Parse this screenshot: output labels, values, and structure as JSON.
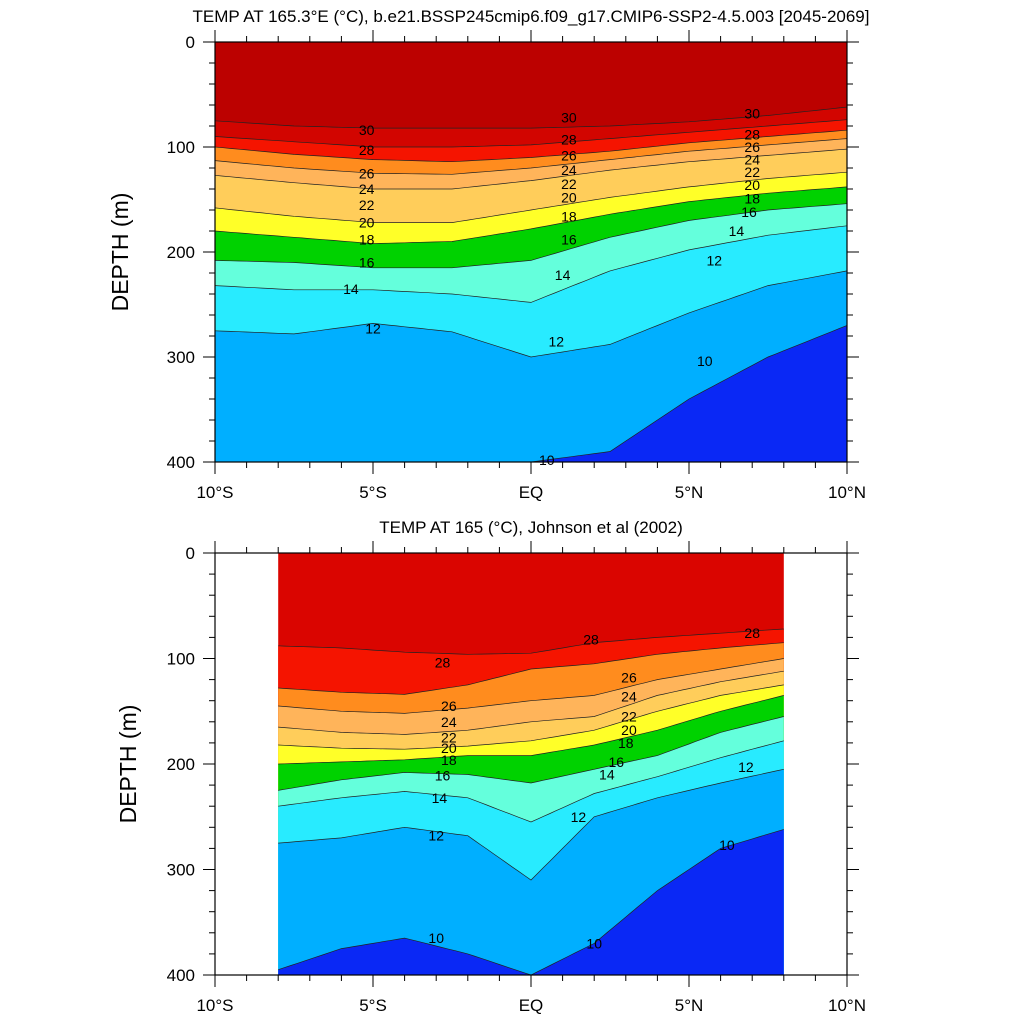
{
  "chart_data": [
    {
      "type": "contour",
      "title": "TEMP AT 165.3°E (°C), b.e21.BSSP245cmip6.f09_g17.CMIP6-SSP2-4.5.003 [2045-2069]",
      "ylabel": "DEPTH (m)",
      "xlabel": "",
      "xlim": [
        -10,
        10
      ],
      "ylim": [
        0,
        400
      ],
      "y_inverted": true,
      "x_ticks": [
        {
          "value": -10,
          "label": "10°S"
        },
        {
          "value": -5,
          "label": "5°S"
        },
        {
          "value": 0,
          "label": "EQ"
        },
        {
          "value": 5,
          "label": "5°N"
        },
        {
          "value": 10,
          "label": "10°N"
        }
      ],
      "y_ticks": [
        {
          "value": 0,
          "label": "0"
        },
        {
          "value": 100,
          "label": "100"
        },
        {
          "value": 200,
          "label": "200"
        },
        {
          "value": 300,
          "label": "300"
        },
        {
          "value": 400,
          "label": "400"
        }
      ],
      "data_extent": [
        -10,
        10
      ],
      "isotherm_depths": {
        "x": [
          -10,
          -7.5,
          -5,
          -2.5,
          0,
          2.5,
          5,
          7.5,
          10
        ],
        "T30": [
          75,
          80,
          82,
          82,
          82,
          80,
          76,
          70,
          62
        ],
        "T28": [
          90,
          95,
          100,
          100,
          98,
          92,
          86,
          80,
          74
        ],
        "T26": [
          100,
          107,
          112,
          114,
          110,
          104,
          96,
          90,
          84
        ],
        "T24": [
          113,
          120,
          125,
          126,
          120,
          112,
          104,
          98,
          92
        ],
        "T22": [
          127,
          134,
          140,
          140,
          132,
          122,
          114,
          108,
          102
        ],
        "T20": [
          158,
          166,
          172,
          172,
          160,
          148,
          138,
          130,
          124
        ],
        "T18": [
          180,
          186,
          192,
          190,
          178,
          164,
          152,
          144,
          138
        ],
        "T16": [
          208,
          210,
          215,
          215,
          208,
          186,
          170,
          160,
          154
        ],
        "T14": [
          232,
          236,
          236,
          240,
          248,
          218,
          198,
          184,
          175
        ],
        "T12": [
          275,
          278,
          268,
          276,
          300,
          288,
          258,
          232,
          218
        ],
        "T10": [
          400,
          400,
          400,
          400,
          400,
          390,
          340,
          300,
          270
        ]
      },
      "contour_labels": [
        {
          "text": "30",
          "x": -5.2,
          "y": 84
        },
        {
          "text": "28",
          "x": -5.2,
          "y": 103
        },
        {
          "text": "26",
          "x": -5.2,
          "y": 125
        },
        {
          "text": "24",
          "x": -5.2,
          "y": 140
        },
        {
          "text": "22",
          "x": -5.2,
          "y": 155
        },
        {
          "text": "20",
          "x": -5.2,
          "y": 172
        },
        {
          "text": "18",
          "x": -5.2,
          "y": 188
        },
        {
          "text": "16",
          "x": -5.2,
          "y": 210
        },
        {
          "text": "14",
          "x": -5.7,
          "y": 235
        },
        {
          "text": "12",
          "x": -5.0,
          "y": 273
        },
        {
          "text": "30",
          "x": 1.2,
          "y": 72
        },
        {
          "text": "28",
          "x": 1.2,
          "y": 93
        },
        {
          "text": "26",
          "x": 1.2,
          "y": 108
        },
        {
          "text": "24",
          "x": 1.2,
          "y": 122
        },
        {
          "text": "22",
          "x": 1.2,
          "y": 135
        },
        {
          "text": "20",
          "x": 1.2,
          "y": 148
        },
        {
          "text": "18",
          "x": 1.2,
          "y": 166
        },
        {
          "text": "16",
          "x": 1.2,
          "y": 188
        },
        {
          "text": "14",
          "x": 1.0,
          "y": 222
        },
        {
          "text": "12",
          "x": 0.8,
          "y": 285
        },
        {
          "text": "10",
          "x": 0.5,
          "y": 398
        },
        {
          "text": "30",
          "x": 7.0,
          "y": 68
        },
        {
          "text": "28",
          "x": 7.0,
          "y": 88
        },
        {
          "text": "26",
          "x": 7.0,
          "y": 100
        },
        {
          "text": "24",
          "x": 7.0,
          "y": 112
        },
        {
          "text": "22",
          "x": 7.0,
          "y": 124
        },
        {
          "text": "20",
          "x": 7.0,
          "y": 136
        },
        {
          "text": "18",
          "x": 7.0,
          "y": 149
        },
        {
          "text": "16",
          "x": 6.9,
          "y": 162
        },
        {
          "text": "14",
          "x": 6.5,
          "y": 180
        },
        {
          "text": "12",
          "x": 5.8,
          "y": 208
        },
        {
          "text": "10",
          "x": 5.5,
          "y": 304
        }
      ],
      "colorbar": "none"
    },
    {
      "type": "contour",
      "title": "TEMP AT 165 (°C), Johnson et al (2002)",
      "ylabel": "DEPTH (m)",
      "xlabel": "",
      "xlim": [
        -10,
        10
      ],
      "ylim": [
        0,
        400
      ],
      "y_inverted": true,
      "x_ticks": [
        {
          "value": -10,
          "label": "10°S"
        },
        {
          "value": -5,
          "label": "5°S"
        },
        {
          "value": 0,
          "label": "EQ"
        },
        {
          "value": 5,
          "label": "5°N"
        },
        {
          "value": 10,
          "label": "10°N"
        }
      ],
      "y_ticks": [
        {
          "value": 0,
          "label": "0"
        },
        {
          "value": 100,
          "label": "100"
        },
        {
          "value": 200,
          "label": "200"
        },
        {
          "value": 300,
          "label": "300"
        },
        {
          "value": 400,
          "label": "400"
        }
      ],
      "data_extent": [
        -8,
        8
      ],
      "isotherm_depths": {
        "x": [
          -8,
          -6,
          -4,
          -2,
          0,
          2,
          4,
          6,
          8
        ],
        "T28": [
          88,
          90,
          94,
          96,
          95,
          85,
          80,
          76,
          72
        ],
        "T26": [
          128,
          132,
          134,
          125,
          110,
          105,
          96,
          90,
          85
        ],
        "T24": [
          145,
          150,
          152,
          147,
          140,
          135,
          120,
          110,
          100
        ],
        "T22": [
          165,
          170,
          172,
          168,
          160,
          155,
          135,
          122,
          112
        ],
        "T20": [
          182,
          185,
          186,
          183,
          178,
          168,
          150,
          135,
          125
        ],
        "T18": [
          200,
          198,
          196,
          192,
          192,
          182,
          168,
          150,
          135
        ],
        "T16": [
          225,
          215,
          208,
          210,
          218,
          205,
          192,
          170,
          155
        ],
        "T14": [
          240,
          232,
          226,
          232,
          255,
          228,
          212,
          194,
          178
        ],
        "T12": [
          275,
          270,
          260,
          268,
          310,
          250,
          232,
          218,
          205
        ],
        "T10": [
          395,
          375,
          365,
          380,
          400,
          370,
          320,
          280,
          262
        ]
      },
      "contour_labels": [
        {
          "text": "28",
          "x": -2.8,
          "y": 104
        },
        {
          "text": "26",
          "x": -2.6,
          "y": 145
        },
        {
          "text": "24",
          "x": -2.6,
          "y": 160
        },
        {
          "text": "22",
          "x": -2.6,
          "y": 175
        },
        {
          "text": "20",
          "x": -2.6,
          "y": 185
        },
        {
          "text": "18",
          "x": -2.6,
          "y": 196
        },
        {
          "text": "16",
          "x": -2.8,
          "y": 211
        },
        {
          "text": "14",
          "x": -2.9,
          "y": 232
        },
        {
          "text": "12",
          "x": -3.0,
          "y": 268
        },
        {
          "text": "10",
          "x": -3.0,
          "y": 365
        },
        {
          "text": "28",
          "x": 1.9,
          "y": 82
        },
        {
          "text": "26",
          "x": 3.1,
          "y": 118
        },
        {
          "text": "24",
          "x": 3.1,
          "y": 136
        },
        {
          "text": "22",
          "x": 3.1,
          "y": 155
        },
        {
          "text": "20",
          "x": 3.1,
          "y": 168
        },
        {
          "text": "18",
          "x": 3.0,
          "y": 180
        },
        {
          "text": "16",
          "x": 2.7,
          "y": 198
        },
        {
          "text": "14",
          "x": 2.4,
          "y": 210
        },
        {
          "text": "12",
          "x": 1.5,
          "y": 250
        },
        {
          "text": "10",
          "x": 2.0,
          "y": 370
        },
        {
          "text": "28",
          "x": 7.0,
          "y": 76
        },
        {
          "text": "12",
          "x": 6.8,
          "y": 203
        },
        {
          "text": "10",
          "x": 6.2,
          "y": 277
        }
      ],
      "colorbar": "none"
    }
  ]
}
